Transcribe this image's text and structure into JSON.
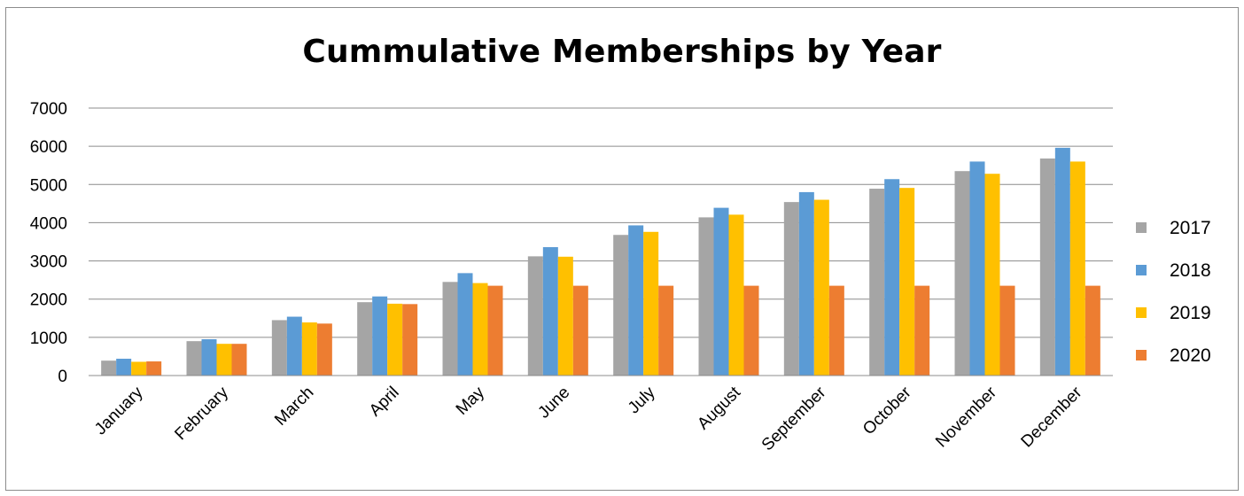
{
  "chart_data": {
    "type": "bar",
    "title": "Cummulative Memberships by Year",
    "xlabel": "",
    "ylabel": "",
    "ylim": [
      0,
      7000
    ],
    "yticks": [
      0,
      1000,
      2000,
      3000,
      4000,
      5000,
      6000,
      7000
    ],
    "grid": true,
    "legend_position": "right",
    "categories": [
      "January",
      "February",
      "March",
      "April",
      "May",
      "June",
      "July",
      "August",
      "September",
      "October",
      "November",
      "December"
    ],
    "series": [
      {
        "name": "2017",
        "color": "#a5a5a5",
        "values": [
          390,
          900,
          1450,
          1920,
          2450,
          3120,
          3680,
          4140,
          4540,
          4890,
          5350,
          5680
        ]
      },
      {
        "name": "2018",
        "color": "#5b9bd5",
        "values": [
          440,
          950,
          1540,
          2070,
          2680,
          3360,
          3930,
          4390,
          4800,
          5140,
          5600,
          5960
        ]
      },
      {
        "name": "2019",
        "color": "#ffc000",
        "values": [
          360,
          830,
          1390,
          1880,
          2420,
          3110,
          3760,
          4210,
          4600,
          4910,
          5280,
          5600
        ]
      },
      {
        "name": "2020",
        "color": "#ed7d31",
        "values": [
          370,
          830,
          1360,
          1870,
          2350,
          2350,
          2350,
          2350,
          2350,
          2350,
          2350,
          2350
        ]
      }
    ]
  }
}
